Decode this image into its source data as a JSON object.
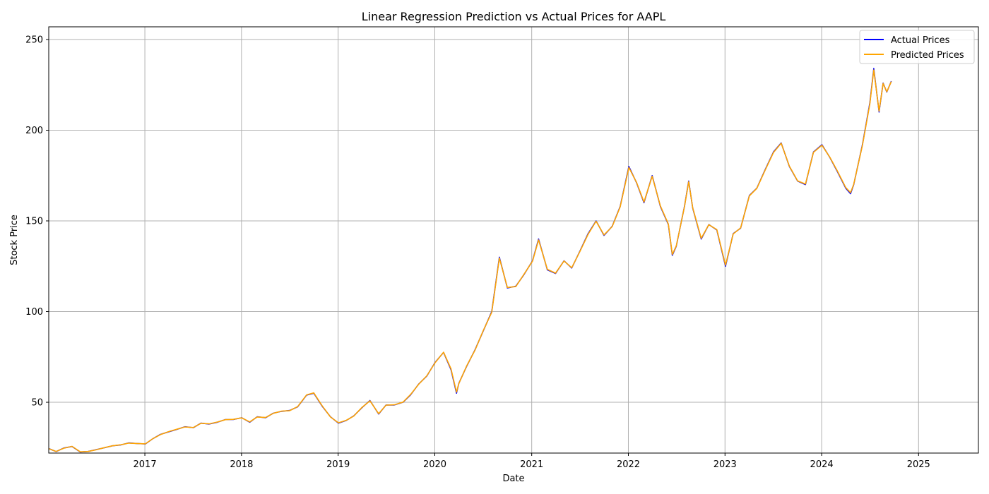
{
  "chart_data": {
    "type": "line",
    "title": "Linear Regression Prediction vs Actual Prices for AAPL",
    "xlabel": "Date",
    "ylabel": "Stock Price",
    "xlim": [
      "2016-01-04",
      "2025-08-15"
    ],
    "ylim": [
      22,
      257
    ],
    "x_ticks": [
      "2017",
      "2018",
      "2019",
      "2020",
      "2021",
      "2022",
      "2023",
      "2024",
      "2025"
    ],
    "y_ticks": [
      50,
      100,
      150,
      200,
      250
    ],
    "grid": true,
    "legend_position": "top-right",
    "colors": {
      "actual": "#0000ff",
      "predicted": "#ffa500"
    },
    "x": [
      "2016-01-04",
      "2016-02-01",
      "2016-03-01",
      "2016-04-01",
      "2016-05-02",
      "2016-06-01",
      "2016-07-01",
      "2016-08-01",
      "2016-09-01",
      "2016-10-03",
      "2016-11-01",
      "2016-12-01",
      "2017-01-03",
      "2017-02-01",
      "2017-03-01",
      "2017-04-03",
      "2017-05-01",
      "2017-06-01",
      "2017-07-03",
      "2017-08-01",
      "2017-09-01",
      "2017-10-02",
      "2017-11-01",
      "2017-12-01",
      "2018-01-02",
      "2018-02-01",
      "2018-03-01",
      "2018-04-02",
      "2018-05-01",
      "2018-06-01",
      "2018-07-02",
      "2018-08-01",
      "2018-09-04",
      "2018-10-01",
      "2018-11-01",
      "2018-12-03",
      "2019-01-02",
      "2019-02-01",
      "2019-03-01",
      "2019-04-01",
      "2019-05-01",
      "2019-06-03",
      "2019-07-01",
      "2019-08-01",
      "2019-09-03",
      "2019-10-01",
      "2019-11-01",
      "2019-12-02",
      "2020-01-02",
      "2020-02-03",
      "2020-03-02",
      "2020-03-23",
      "2020-04-01",
      "2020-05-01",
      "2020-06-01",
      "2020-07-01",
      "2020-08-03",
      "2020-09-01",
      "2020-10-01",
      "2020-11-02",
      "2020-12-01",
      "2021-01-04",
      "2021-01-27",
      "2021-03-01",
      "2021-04-01",
      "2021-05-03",
      "2021-06-01",
      "2021-07-01",
      "2021-08-02",
      "2021-09-01",
      "2021-10-01",
      "2021-11-01",
      "2021-12-01",
      "2022-01-03",
      "2022-02-01",
      "2022-03-01",
      "2022-04-01",
      "2022-05-02",
      "2022-06-01",
      "2022-06-16",
      "2022-07-01",
      "2022-08-01",
      "2022-08-17",
      "2022-09-01",
      "2022-10-03",
      "2022-11-01",
      "2022-12-01",
      "2023-01-03",
      "2023-02-01",
      "2023-03-01",
      "2023-04-03",
      "2023-05-01",
      "2023-06-01",
      "2023-07-03",
      "2023-08-01",
      "2023-09-01",
      "2023-10-02",
      "2023-11-01",
      "2023-12-01",
      "2024-01-02",
      "2024-02-01",
      "2024-03-01",
      "2024-04-01",
      "2024-04-19",
      "2024-05-01",
      "2024-06-03",
      "2024-07-01",
      "2024-07-16",
      "2024-08-05",
      "2024-08-20",
      "2024-09-03",
      "2024-09-20"
    ],
    "series": [
      {
        "name": "Actual Prices",
        "values": [
          24.5,
          22.8,
          24.8,
          25.6,
          22.6,
          22.9,
          23.9,
          24.9,
          26.0,
          26.5,
          27.6,
          27.3,
          27.0,
          30.0,
          32.3,
          33.8,
          35.0,
          36.5,
          36.0,
          38.5,
          38.0,
          39.0,
          40.5,
          40.5,
          41.5,
          39.0,
          42.0,
          41.5,
          44.0,
          45.0,
          45.5,
          47.5,
          54.0,
          55.0,
          48.0,
          42.0,
          38.5,
          40.0,
          42.5,
          47.0,
          51.0,
          43.5,
          48.5,
          48.5,
          50.0,
          54.0,
          60.0,
          64.5,
          72.0,
          77.5,
          68.0,
          55.0,
          60.5,
          70.0,
          79.0,
          89.0,
          100.0,
          130.0,
          113.0,
          114.0,
          120.0,
          128.0,
          140.0,
          123.0,
          121.0,
          128.0,
          124.0,
          133.0,
          143.0,
          150.0,
          142.0,
          147.0,
          158.0,
          180.0,
          171.0,
          160.0,
          175.0,
          158.0,
          148.0,
          131.0,
          136.0,
          158.0,
          172.0,
          157.0,
          140.0,
          148.0,
          145.0,
          125.0,
          143.0,
          146.0,
          164.0,
          168.0,
          178.0,
          188.0,
          193.0,
          180.0,
          172.0,
          170.0,
          188.0,
          192.0,
          185.0,
          177.0,
          168.0,
          165.0,
          170.0,
          192.0,
          215.0,
          234.0,
          210.0,
          226.0,
          221.0,
          227.0
        ]
      },
      {
        "name": "Predicted Prices",
        "values": [
          24.4,
          22.9,
          24.7,
          25.7,
          22.7,
          22.9,
          23.8,
          25.0,
          26.0,
          26.6,
          27.5,
          27.3,
          27.1,
          30.0,
          32.2,
          33.9,
          35.1,
          36.4,
          36.1,
          38.4,
          38.1,
          39.1,
          40.4,
          40.6,
          41.4,
          39.2,
          41.9,
          41.6,
          43.9,
          45.1,
          45.4,
          47.6,
          54.1,
          55.2,
          48.2,
          41.9,
          38.7,
          40.1,
          42.4,
          47.2,
          50.8,
          43.7,
          48.4,
          48.6,
          50.1,
          54.2,
          59.9,
          64.6,
          71.8,
          77.6,
          68.5,
          55.6,
          60.4,
          70.2,
          78.8,
          89.2,
          99.6,
          129.5,
          113.3,
          113.8,
          120.2,
          127.8,
          139.5,
          123.3,
          121.2,
          127.9,
          124.2,
          132.8,
          142.6,
          149.8,
          142.3,
          146.9,
          157.7,
          179.4,
          171.2,
          160.4,
          174.6,
          158.3,
          148.3,
          131.5,
          136.2,
          157.8,
          171.6,
          157.2,
          140.4,
          147.9,
          145.2,
          125.6,
          142.8,
          146.1,
          163.8,
          167.9,
          177.8,
          187.7,
          192.8,
          180.2,
          172.1,
          170.3,
          187.8,
          191.7,
          185.1,
          177.3,
          168.4,
          165.6,
          170.2,
          191.6,
          214.4,
          233.2,
          210.5,
          225.8,
          221.2,
          226.8
        ]
      }
    ]
  }
}
